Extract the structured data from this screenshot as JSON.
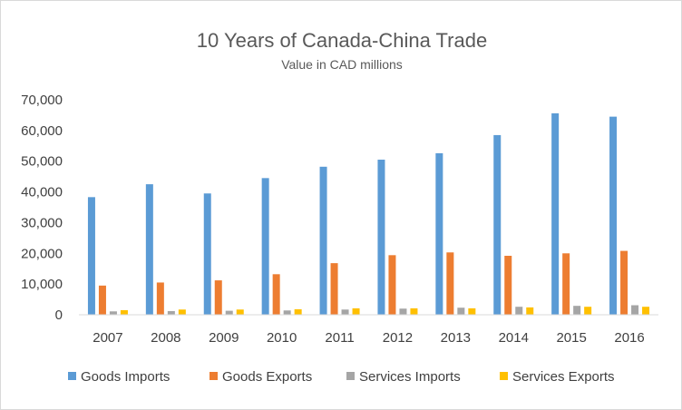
{
  "chart_data": {
    "type": "bar",
    "title": "10 Years of Canada-China Trade",
    "subtitle": "Value in CAD millions",
    "categories": [
      "2007",
      "2008",
      "2009",
      "2010",
      "2011",
      "2012",
      "2013",
      "2014",
      "2015",
      "2016"
    ],
    "series": [
      {
        "name": "Goods Imports",
        "color": "#5B9BD5",
        "values": [
          38300,
          42500,
          39500,
          44500,
          48200,
          50500,
          52600,
          58500,
          65600,
          64500
        ]
      },
      {
        "name": "Goods Exports",
        "color": "#ED7D31",
        "values": [
          9500,
          10500,
          11200,
          13200,
          16800,
          19400,
          20300,
          19200,
          20000,
          20800
        ]
      },
      {
        "name": "Services Imports",
        "color": "#A5A5A5",
        "values": [
          1100,
          1200,
          1300,
          1400,
          1700,
          2000,
          2300,
          2600,
          2900,
          3100
        ]
      },
      {
        "name": "Services Exports",
        "color": "#FFC000",
        "values": [
          1500,
          1700,
          1700,
          1800,
          2100,
          2100,
          2100,
          2400,
          2600,
          2600
        ]
      }
    ],
    "yticks": [
      "0",
      "10,000",
      "20,000",
      "30,000",
      "40,000",
      "50,000",
      "60,000",
      "70,000"
    ],
    "ylim": [
      0,
      70000
    ],
    "grid": false,
    "legend_position": "bottom"
  }
}
